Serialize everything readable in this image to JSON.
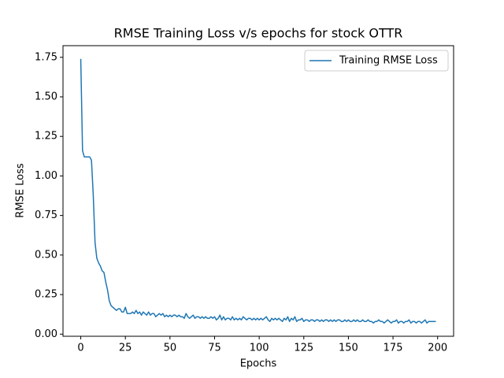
{
  "chart_data": {
    "type": "line",
    "title": "RMSE Training Loss v/s epochs for stock OTTR",
    "xlabel": "Epochs",
    "ylabel": "RMSE Loss",
    "x": [
      0,
      1,
      2,
      3,
      4,
      5,
      6,
      7,
      8,
      9,
      10,
      11,
      12,
      13,
      14,
      15,
      16,
      17,
      18,
      19,
      20,
      21,
      22,
      23,
      24,
      25,
      26,
      27,
      28,
      29,
      30,
      31,
      32,
      33,
      34,
      35,
      36,
      37,
      38,
      39,
      40,
      41,
      42,
      43,
      44,
      45,
      46,
      47,
      48,
      49,
      50,
      51,
      52,
      53,
      54,
      55,
      56,
      57,
      58,
      59,
      60,
      61,
      62,
      63,
      64,
      65,
      66,
      67,
      68,
      69,
      70,
      71,
      72,
      73,
      74,
      75,
      76,
      77,
      78,
      79,
      80,
      81,
      82,
      83,
      84,
      85,
      86,
      87,
      88,
      89,
      90,
      91,
      92,
      93,
      94,
      95,
      96,
      97,
      98,
      99,
      100,
      101,
      102,
      103,
      104,
      105,
      106,
      107,
      108,
      109,
      110,
      111,
      112,
      113,
      114,
      115,
      116,
      117,
      118,
      119,
      120,
      121,
      122,
      123,
      124,
      125,
      126,
      127,
      128,
      129,
      130,
      131,
      132,
      133,
      134,
      135,
      136,
      137,
      138,
      139,
      140,
      141,
      142,
      143,
      144,
      145,
      146,
      147,
      148,
      149,
      150,
      151,
      152,
      153,
      154,
      155,
      156,
      157,
      158,
      159,
      160,
      161,
      162,
      163,
      164,
      165,
      166,
      167,
      168,
      169,
      170,
      171,
      172,
      173,
      174,
      175,
      176,
      177,
      178,
      179,
      180,
      181,
      182,
      183,
      184,
      185,
      186,
      187,
      188,
      189,
      190,
      191,
      192,
      193,
      194,
      195,
      196,
      197,
      198,
      199
    ],
    "series": [
      {
        "name": "Training RMSE Loss",
        "color": "#1f77b4",
        "values": [
          1.74,
          1.16,
          1.12,
          1.12,
          1.12,
          1.12,
          1.1,
          0.88,
          0.58,
          0.48,
          0.45,
          0.43,
          0.4,
          0.39,
          0.33,
          0.28,
          0.21,
          0.18,
          0.17,
          0.16,
          0.15,
          0.16,
          0.16,
          0.14,
          0.14,
          0.17,
          0.13,
          0.13,
          0.13,
          0.14,
          0.13,
          0.15,
          0.13,
          0.14,
          0.12,
          0.14,
          0.13,
          0.12,
          0.14,
          0.12,
          0.13,
          0.13,
          0.11,
          0.12,
          0.13,
          0.12,
          0.13,
          0.11,
          0.12,
          0.11,
          0.12,
          0.11,
          0.12,
          0.12,
          0.11,
          0.12,
          0.11,
          0.11,
          0.1,
          0.13,
          0.11,
          0.1,
          0.11,
          0.12,
          0.1,
          0.11,
          0.11,
          0.1,
          0.11,
          0.1,
          0.11,
          0.1,
          0.1,
          0.11,
          0.1,
          0.11,
          0.09,
          0.1,
          0.12,
          0.09,
          0.11,
          0.09,
          0.1,
          0.1,
          0.09,
          0.11,
          0.09,
          0.1,
          0.09,
          0.1,
          0.09,
          0.11,
          0.1,
          0.09,
          0.1,
          0.1,
          0.09,
          0.1,
          0.09,
          0.1,
          0.09,
          0.1,
          0.09,
          0.1,
          0.11,
          0.09,
          0.08,
          0.1,
          0.09,
          0.1,
          0.09,
          0.1,
          0.09,
          0.08,
          0.1,
          0.09,
          0.11,
          0.08,
          0.1,
          0.09,
          0.11,
          0.08,
          0.09,
          0.09,
          0.1,
          0.08,
          0.09,
          0.09,
          0.08,
          0.09,
          0.09,
          0.08,
          0.09,
          0.09,
          0.08,
          0.09,
          0.08,
          0.09,
          0.09,
          0.08,
          0.09,
          0.08,
          0.09,
          0.08,
          0.09,
          0.09,
          0.08,
          0.08,
          0.09,
          0.08,
          0.09,
          0.08,
          0.08,
          0.09,
          0.08,
          0.09,
          0.08,
          0.08,
          0.09,
          0.08,
          0.08,
          0.09,
          0.08,
          0.08,
          0.07,
          0.08,
          0.08,
          0.09,
          0.08,
          0.08,
          0.07,
          0.08,
          0.09,
          0.08,
          0.07,
          0.08,
          0.08,
          0.09,
          0.07,
          0.08,
          0.08,
          0.07,
          0.08,
          0.08,
          0.09,
          0.07,
          0.08,
          0.08,
          0.07,
          0.08,
          0.08,
          0.07,
          0.08,
          0.09,
          0.07,
          0.08,
          0.08,
          0.08,
          0.08,
          0.08
        ]
      }
    ],
    "xlim": [
      -9.95,
      208.95
    ],
    "xticks": [
      0,
      25,
      50,
      75,
      100,
      125,
      150,
      175,
      200
    ],
    "ylim": [
      -0.0135,
      1.8235
    ],
    "yticks": [
      {
        "value": 0,
        "label": "0.00"
      },
      {
        "value": 0.25,
        "label": "0.25"
      },
      {
        "value": 0.5,
        "label": "0.50"
      },
      {
        "value": 0.75,
        "label": "0.75"
      },
      {
        "value": 1,
        "label": "1.00"
      },
      {
        "value": 1.25,
        "label": "1.25"
      },
      {
        "value": 1.5,
        "label": "1.50"
      },
      {
        "value": 1.75,
        "label": "1.75"
      }
    ],
    "legend": "upper right"
  }
}
